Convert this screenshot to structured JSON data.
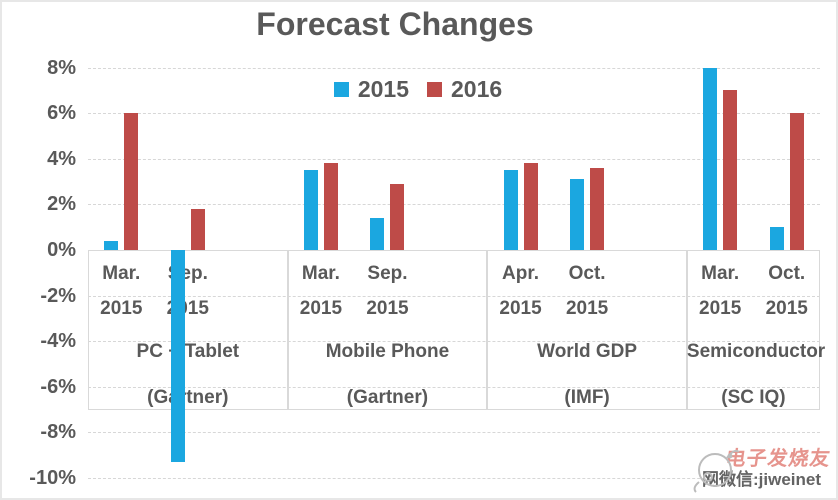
{
  "chart_data": {
    "type": "bar",
    "title": "Forecast Changes",
    "legend_position": "top-center",
    "grid": "horizontal-dashed",
    "ylim": [
      -10,
      8
    ],
    "yticks": [
      {
        "label": "8%",
        "value": 8
      },
      {
        "label": "6%",
        "value": 6
      },
      {
        "label": "4%",
        "value": 4
      },
      {
        "label": "2%",
        "value": 2
      },
      {
        "label": "0%",
        "value": 0
      },
      {
        "label": "-2%",
        "value": -2
      },
      {
        "label": "-4%",
        "value": -4
      },
      {
        "label": "-6%",
        "value": -6
      },
      {
        "label": "-8%",
        "value": -8
      },
      {
        "label": "-10%",
        "value": -10
      }
    ],
    "series": [
      {
        "name": "2015",
        "color": "#1BA7E0"
      },
      {
        "name": "2016",
        "color": "#BE4B48"
      }
    ],
    "groups": [
      {
        "name": "PC + Tablet",
        "source": "(Gartner)",
        "columns": [
          {
            "month": "Mar.",
            "year": "2015",
            "values": [
              0.4,
              6.0
            ]
          },
          {
            "month": "Sep.",
            "year": "2015",
            "values": [
              -9.3,
              1.8
            ]
          }
        ]
      },
      {
        "name": "Mobile Phone",
        "source": "(Gartner)",
        "columns": [
          {
            "month": "Mar.",
            "year": "2015",
            "values": [
              3.5,
              3.8
            ]
          },
          {
            "month": "Sep.",
            "year": "2015",
            "values": [
              1.4,
              2.9
            ]
          }
        ]
      },
      {
        "name": "World GDP",
        "source": "(IMF)",
        "columns": [
          {
            "month": "Apr.",
            "year": "2015",
            "values": [
              3.5,
              3.8
            ]
          },
          {
            "month": "Oct.",
            "year": "2015",
            "values": [
              3.1,
              3.6
            ]
          }
        ]
      },
      {
        "name": "Semiconductor",
        "source": "(SC IQ)",
        "columns": [
          {
            "month": "Mar.",
            "year": "2015",
            "values": [
              8.0,
              7.0
            ]
          },
          {
            "month": "Oct.",
            "year": "2015",
            "values": [
              1.0,
              6.0
            ]
          }
        ]
      }
    ]
  },
  "watermark": {
    "line1": "电子发烧友",
    "line2": "网微信:jiweinet"
  }
}
